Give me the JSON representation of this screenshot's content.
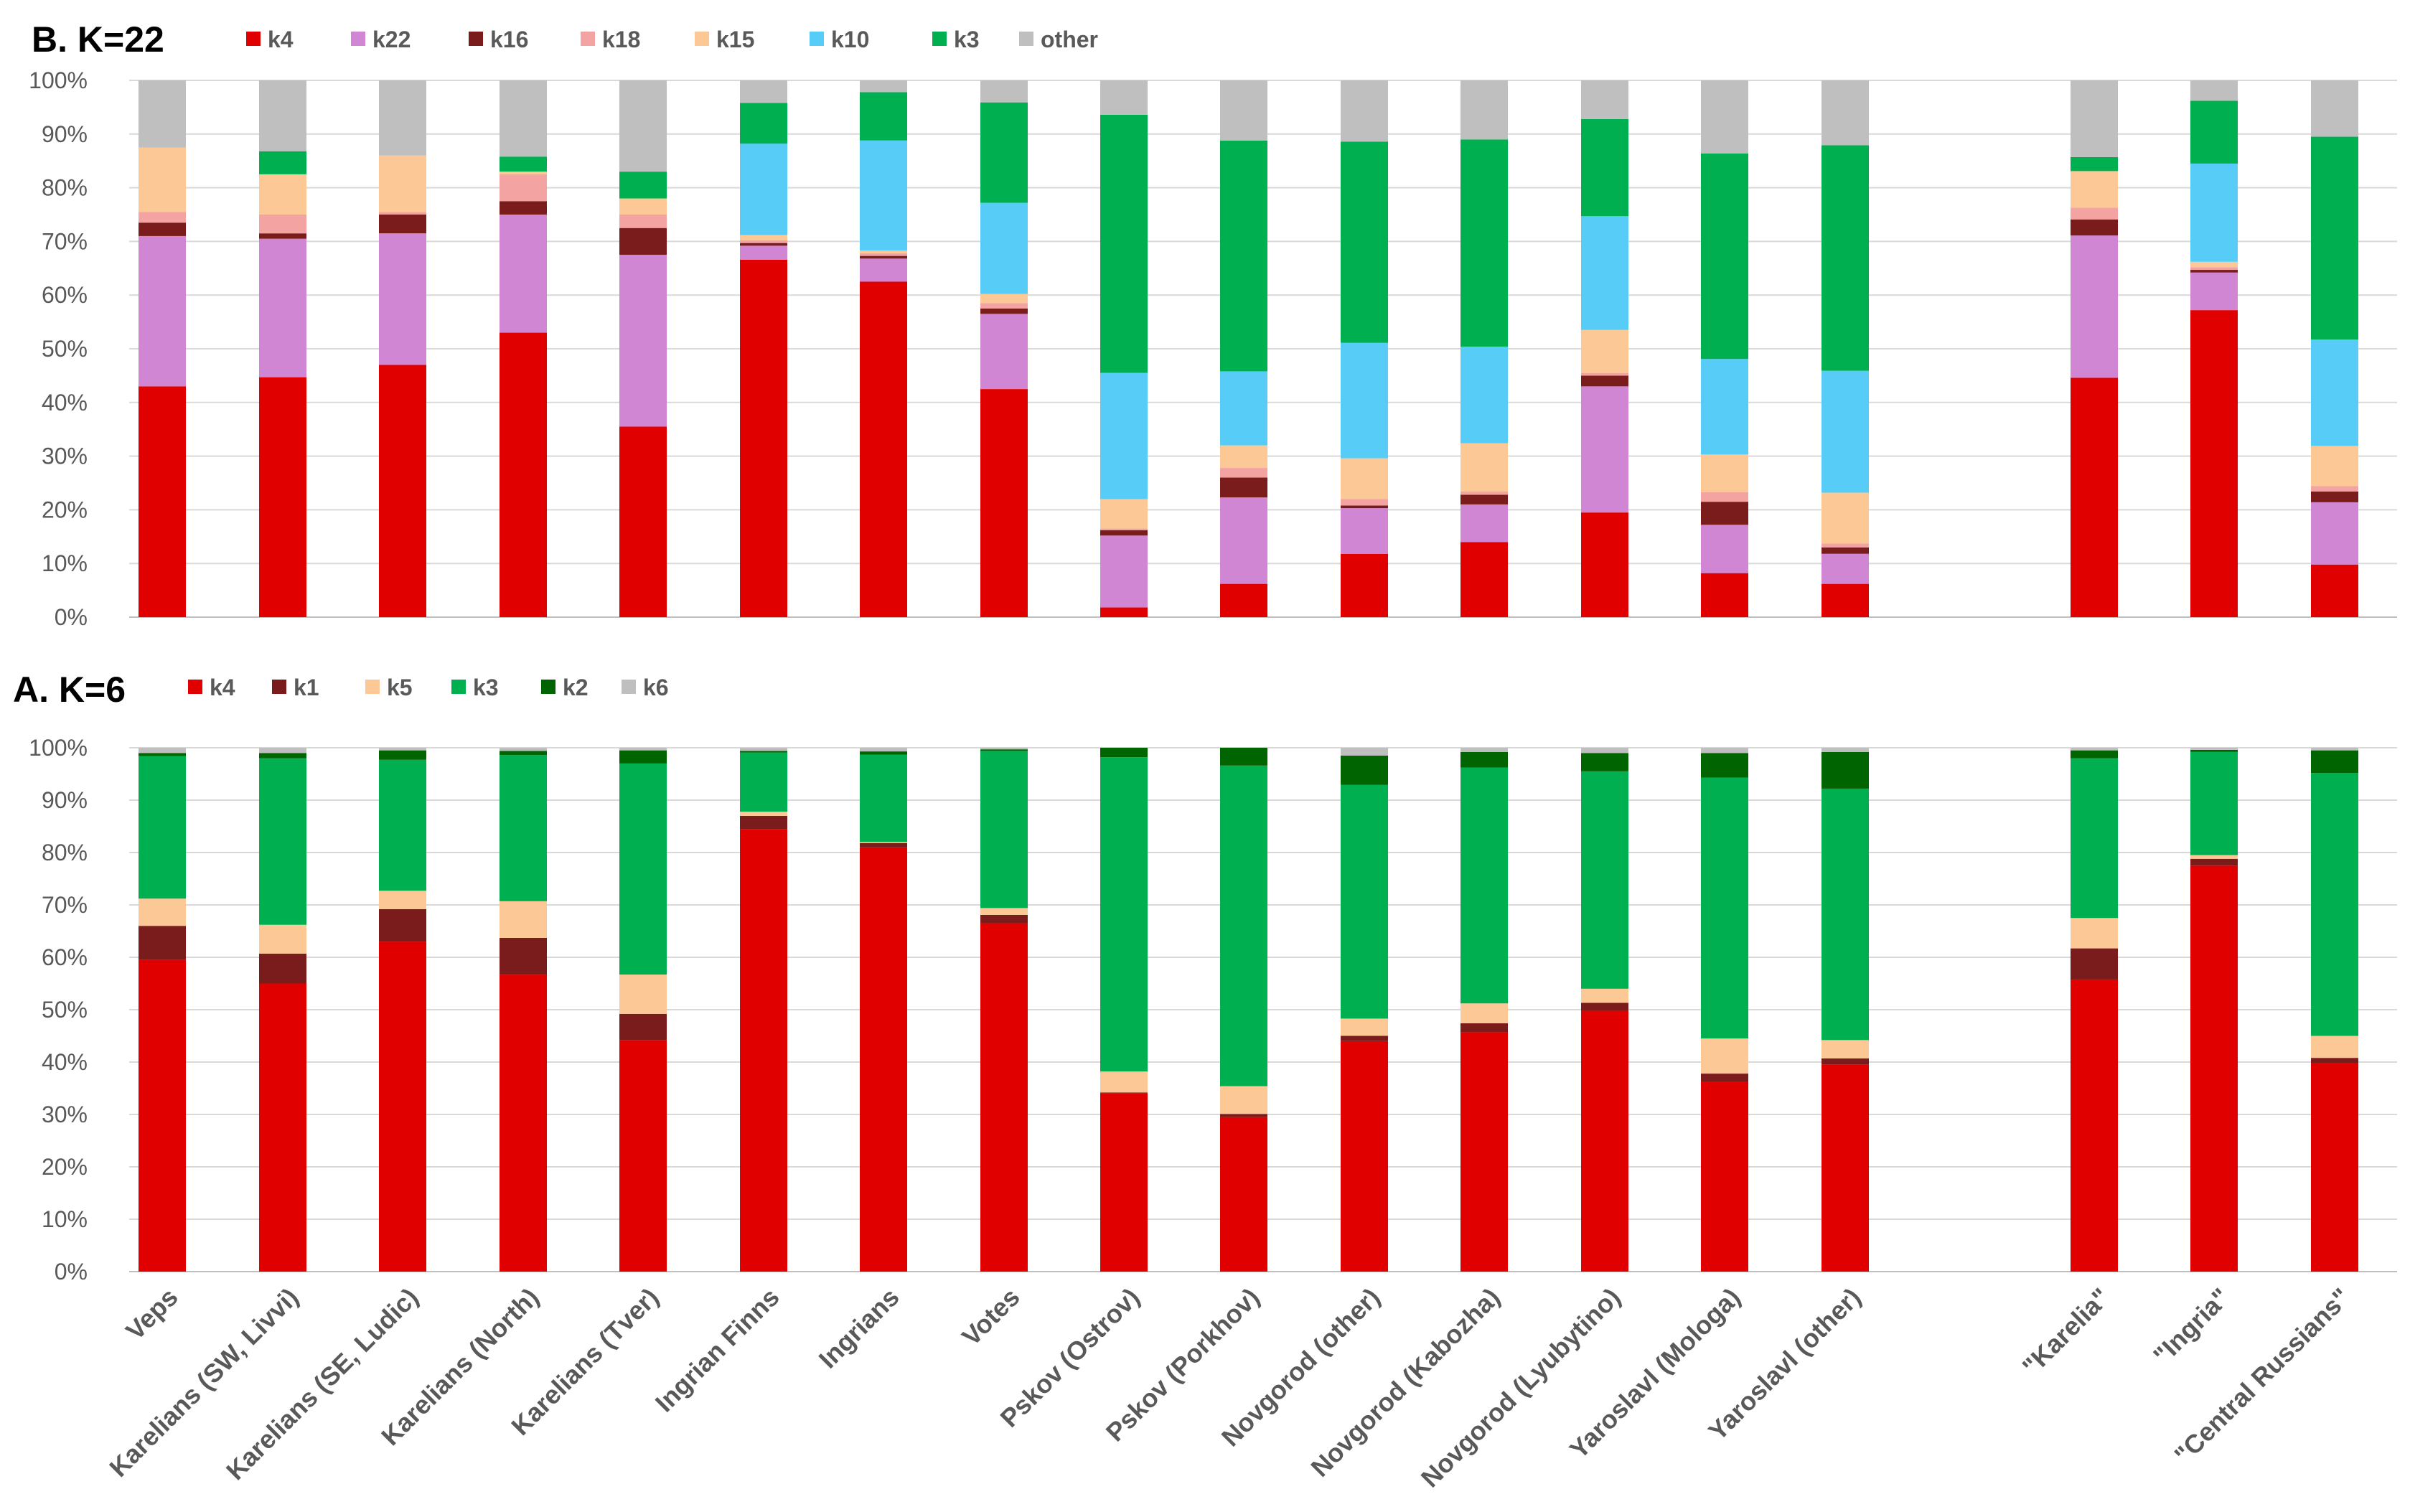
{
  "chart_data": [
    {
      "type": "bar",
      "stacked": true,
      "title": "B. K=22",
      "ylim": [
        0,
        100
      ],
      "yticks": [
        "0%",
        "10%",
        "20%",
        "30%",
        "40%",
        "50%",
        "60%",
        "70%",
        "80%",
        "90%",
        "100%"
      ],
      "grid": true,
      "legend_position": "top",
      "categories": [
        "Veps",
        "Karelians (SW, Livvi)",
        "Karelians (SE, Ludic)",
        "Karelians (North)",
        "Karelians (Tver)",
        "Ingrian Finns",
        "Ingrians",
        "Votes",
        "Pskov (Ostrov)",
        "Pskov (Porkhov)",
        "Novgorod (other)",
        "Novgorod (Kabozha)",
        "Novgorod (Lyubytino)",
        "Yaroslavl (Mologa)",
        "Yaroslavl (other)",
        "\"Karelia\"",
        "\"Ingria\"",
        "\"Central Russians\""
      ],
      "series": [
        {
          "name": "k4",
          "color": "#e00000",
          "values": [
            43,
            44.7,
            47,
            53,
            35.5,
            66.6,
            62.5,
            42.5,
            1.8,
            6.2,
            11.8,
            14,
            19.5,
            8.2,
            6.2,
            44.6,
            57.2,
            9.8
          ]
        },
        {
          "name": "k22",
          "color": "#d086d2",
          "values": [
            28,
            25.8,
            24.5,
            22,
            32,
            2.6,
            4.3,
            14,
            13.4,
            16.1,
            8.5,
            7,
            23.5,
            9,
            5.6,
            26.5,
            7,
            11.6
          ]
        },
        {
          "name": "k16",
          "color": "#7b1c1c",
          "values": [
            2.5,
            1,
            3.5,
            2.5,
            5,
            0.5,
            0.5,
            1,
            1,
            3.7,
            0.5,
            1.8,
            2,
            4.3,
            1.2,
            3,
            0.5,
            2
          ]
        },
        {
          "name": "k18",
          "color": "#f4a3a3",
          "values": [
            2,
            3.5,
            0.5,
            5,
            2.5,
            0.5,
            0.5,
            1,
            0.3,
            1.8,
            1.2,
            0.6,
            0.5,
            1.8,
            0.7,
            2.2,
            0.5,
            1
          ]
        },
        {
          "name": "k15",
          "color": "#fcc895",
          "values": [
            12,
            7.5,
            10.5,
            0.5,
            3,
            1,
            0.5,
            1.7,
            5.5,
            4.2,
            7.6,
            9,
            8,
            7,
            9.5,
            6.8,
            1,
            7.5
          ]
        },
        {
          "name": "k10",
          "color": "#56ccf7",
          "values": [
            0,
            0,
            0,
            0,
            0,
            17,
            20.5,
            17,
            23.5,
            13.8,
            21.5,
            18,
            21.2,
            17.8,
            22.7,
            0,
            18.3,
            19.8
          ]
        },
        {
          "name": "k3",
          "color": "#00b050",
          "values": [
            0,
            4.3,
            0,
            2.8,
            5,
            7.6,
            9,
            18.7,
            48.1,
            43,
            37.5,
            38.6,
            18.1,
            38.3,
            42,
            2.6,
            11.7,
            37.8
          ]
        },
        {
          "name": "other",
          "color": "#bfbfbf",
          "values": [
            12.5,
            13.2,
            14,
            14.2,
            17,
            4.2,
            2.2,
            4.1,
            6.4,
            11.2,
            11.4,
            11,
            7.2,
            13.6,
            12.1,
            14.3,
            3.8,
            10.5
          ]
        }
      ]
    },
    {
      "type": "bar",
      "stacked": true,
      "title": "A. K=6",
      "ylim": [
        0,
        100
      ],
      "yticks": [
        "0%",
        "10%",
        "20%",
        "30%",
        "40%",
        "50%",
        "60%",
        "70%",
        "80%",
        "90%",
        "100%"
      ],
      "grid": true,
      "legend_position": "top",
      "categories": [
        "Veps",
        "Karelians (SW, Livvi)",
        "Karelians (SE, Ludic)",
        "Karelians (North)",
        "Karelians (Tver)",
        "Ingrian Finns",
        "Ingrians",
        "Votes",
        "Pskov (Ostrov)",
        "Pskov (Porkhov)",
        "Novgorod (other)",
        "Novgorod (Kabozha)",
        "Novgorod (Lyubytino)",
        "Yaroslavl (Mologa)",
        "Yaroslavl (other)",
        "\"Karelia\"",
        "\"Ingria\"",
        "\"Central Russians\""
      ],
      "series": [
        {
          "name": "k4",
          "color": "#e00000",
          "values": [
            59.5,
            55,
            63,
            56.7,
            44.2,
            84.5,
            81,
            66.5,
            34,
            29.5,
            44,
            45.7,
            49.8,
            36.3,
            39.5,
            55.7,
            77.5,
            39.8
          ]
        },
        {
          "name": "k1",
          "color": "#7b1c1c",
          "values": [
            6.5,
            5.7,
            6.2,
            7,
            5,
            2.5,
            0.8,
            1.6,
            0.2,
            0.6,
            1,
            1.7,
            1.5,
            1.5,
            1.2,
            6,
            1.3,
            1
          ]
        },
        {
          "name": "k5",
          "color": "#fcc895",
          "values": [
            5.2,
            5.5,
            3.5,
            7,
            7.5,
            0.8,
            0.2,
            1.3,
            4,
            5.3,
            3.3,
            3.8,
            2.7,
            6.7,
            3.5,
            5.8,
            0.7,
            4.2
          ]
        },
        {
          "name": "k3",
          "color": "#00b050",
          "values": [
            27.2,
            31.8,
            25,
            27.9,
            40.3,
            11.3,
            16.7,
            30,
            60,
            61.2,
            44.6,
            45,
            41.5,
            49.8,
            48,
            30.5,
            19.7,
            50.2
          ]
        },
        {
          "name": "k2",
          "color": "#006400",
          "values": [
            0.6,
            1,
            1.8,
            0.8,
            2.5,
            0.3,
            0.6,
            0.3,
            1.8,
            3.4,
            5.6,
            3,
            3.5,
            4.7,
            7,
            1.5,
            0.4,
            4.3
          ]
        },
        {
          "name": "k6",
          "color": "#bfbfbf",
          "values": [
            1,
            1,
            0.5,
            0.6,
            0.5,
            0.6,
            0.7,
            0.3,
            0,
            0,
            1.5,
            0.8,
            1,
            1,
            0.8,
            0.5,
            0.4,
            0.5
          ]
        }
      ]
    }
  ]
}
